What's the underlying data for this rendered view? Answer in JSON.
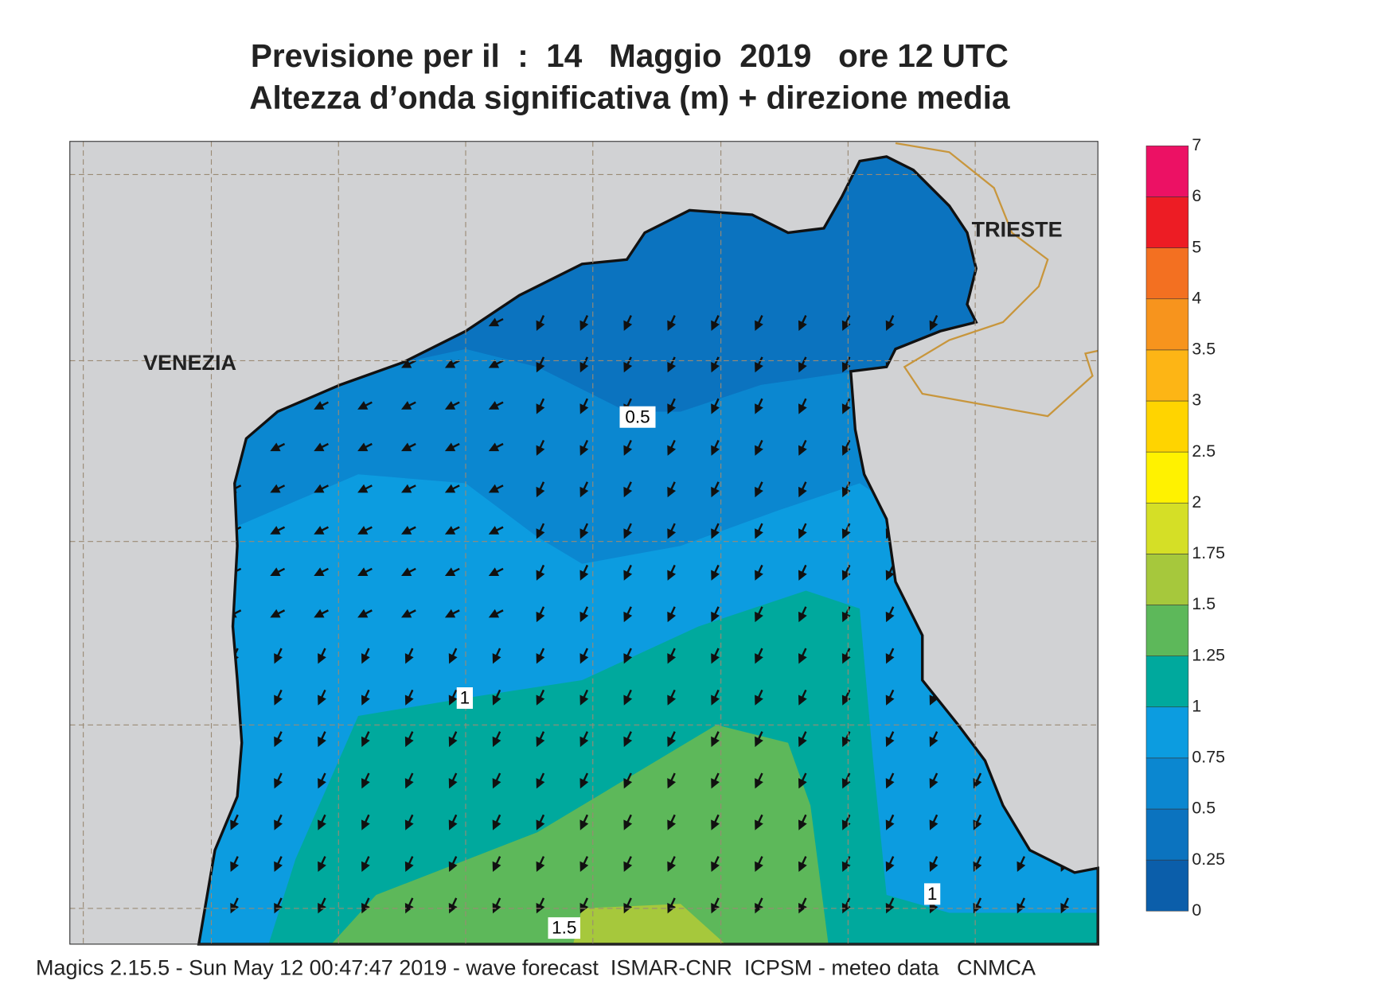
{
  "header": {
    "title_line1": "Previsione per il  :  14   Maggio  2019   ore 12 UTC",
    "title_line2": "Altezza d’onda significativa (m) + direzione media"
  },
  "map": {
    "place_labels": [
      "VENEZIA",
      "TRIESTE"
    ],
    "contour_labels": [
      0.5,
      1,
      1,
      1.5
    ]
  },
  "colorbar": {
    "levels": [
      0,
      0.25,
      0.5,
      0.75,
      1,
      1.25,
      1.5,
      1.75,
      2,
      2.5,
      3,
      3.5,
      4,
      5,
      6,
      7
    ],
    "colors": [
      "#0b5eaa",
      "#0b73bf",
      "#0b87d0",
      "#0c9ce0",
      "#00a99d",
      "#5db85a",
      "#a6c83c",
      "#d5df26",
      "#fff200",
      "#ffd400",
      "#fdb515",
      "#f7941d",
      "#f37021",
      "#ed1c24",
      "#ec1164"
    ]
  },
  "footer": "Magics 2.15.5 - Sun May 12 00:47:47 2019 - wave forecast  ISMAR-CNR  ICPSM - meteo data   CNMCA"
}
